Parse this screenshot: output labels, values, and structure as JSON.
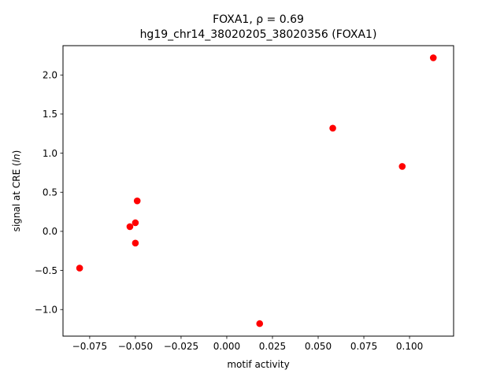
{
  "chart_data": {
    "type": "scatter",
    "title_main": "FOXA1, ",
    "title_rho": "ρ = 0.69",
    "subtitle": "hg19_chr14_38020205_38020356 (FOXA1)",
    "xlabel": "motif activity",
    "ylabel_prefix": "signal at CRE (",
    "ylabel_ln": "ln",
    "ylabel_suffix": ")",
    "xlim": [
      -0.0896,
      0.1241
    ],
    "ylim": [
      -1.34,
      2.375
    ],
    "xticks": [
      {
        "value": -0.075,
        "label": "−0.075"
      },
      {
        "value": -0.05,
        "label": "−0.050"
      },
      {
        "value": -0.025,
        "label": "−0.025"
      },
      {
        "value": 0.0,
        "label": "0.000"
      },
      {
        "value": 0.025,
        "label": "0.025"
      },
      {
        "value": 0.05,
        "label": "0.050"
      },
      {
        "value": 0.075,
        "label": "0.075"
      },
      {
        "value": 0.1,
        "label": "0.100"
      }
    ],
    "yticks": [
      {
        "value": -1.0,
        "label": "−1.0"
      },
      {
        "value": -0.5,
        "label": "−0.5"
      },
      {
        "value": 0.0,
        "label": "0.0"
      },
      {
        "value": 0.5,
        "label": "0.5"
      },
      {
        "value": 1.0,
        "label": "1.0"
      },
      {
        "value": 1.5,
        "label": "1.5"
      },
      {
        "value": 2.0,
        "label": "2.0"
      }
    ],
    "grid": false,
    "point_color": "#ff0000",
    "points": [
      {
        "x": -0.0805,
        "y": -0.47
      },
      {
        "x": -0.053,
        "y": 0.06
      },
      {
        "x": -0.05,
        "y": 0.11
      },
      {
        "x": -0.05,
        "y": -0.15
      },
      {
        "x": -0.049,
        "y": 0.39
      },
      {
        "x": 0.018,
        "y": -1.18
      },
      {
        "x": 0.058,
        "y": 1.32
      },
      {
        "x": 0.096,
        "y": 0.83
      },
      {
        "x": 0.113,
        "y": 2.22
      }
    ]
  }
}
